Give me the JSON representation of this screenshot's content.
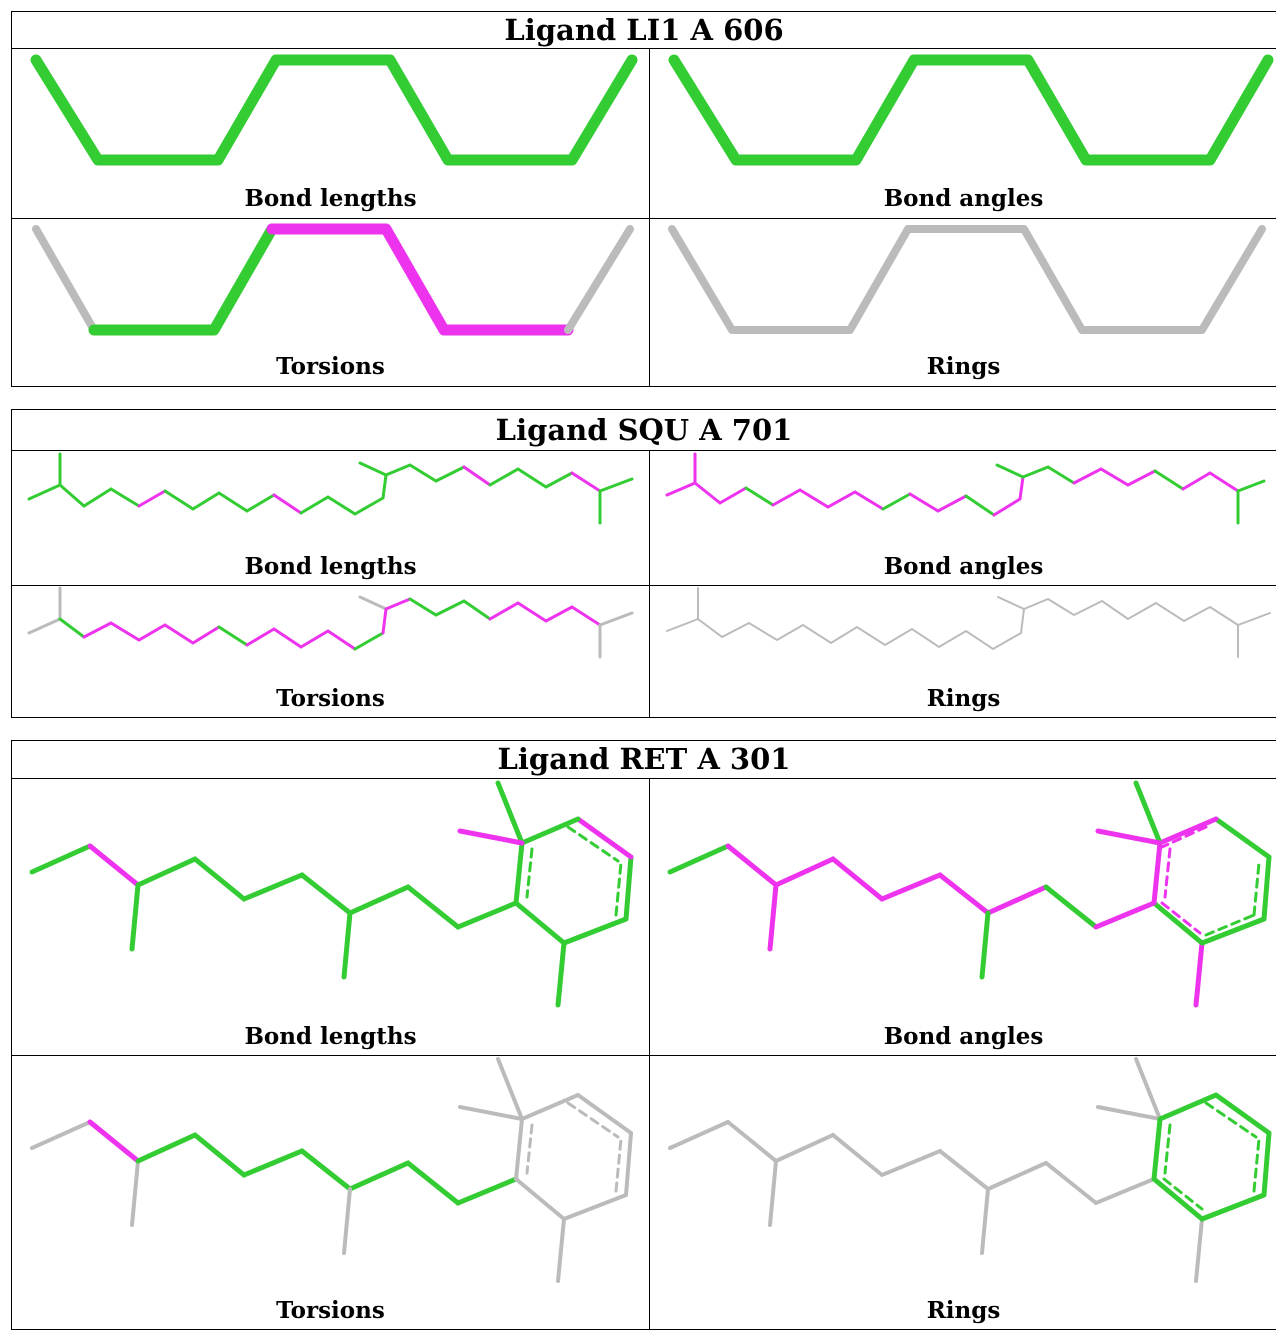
{
  "colors": {
    "green": "#33cc33",
    "magenta": "#ee33ee",
    "gray": "#bbbbbb"
  },
  "ligands": [
    {
      "title": "Ligand LI1 A 606",
      "panels": [
        {
          "caption": "Bond lengths"
        },
        {
          "caption": "Bond angles"
        },
        {
          "caption": "Torsions"
        },
        {
          "caption": "Rings"
        }
      ]
    },
    {
      "title": "Ligand SQU A 701",
      "panels": [
        {
          "caption": "Bond lengths"
        },
        {
          "caption": "Bond angles"
        },
        {
          "caption": "Torsions"
        },
        {
          "caption": "Rings"
        }
      ]
    },
    {
      "title": "Ligand RET A 301",
      "panels": [
        {
          "caption": "Bond lengths"
        },
        {
          "caption": "Bond angles"
        },
        {
          "caption": "Torsions"
        },
        {
          "caption": "Rings"
        }
      ]
    }
  ]
}
